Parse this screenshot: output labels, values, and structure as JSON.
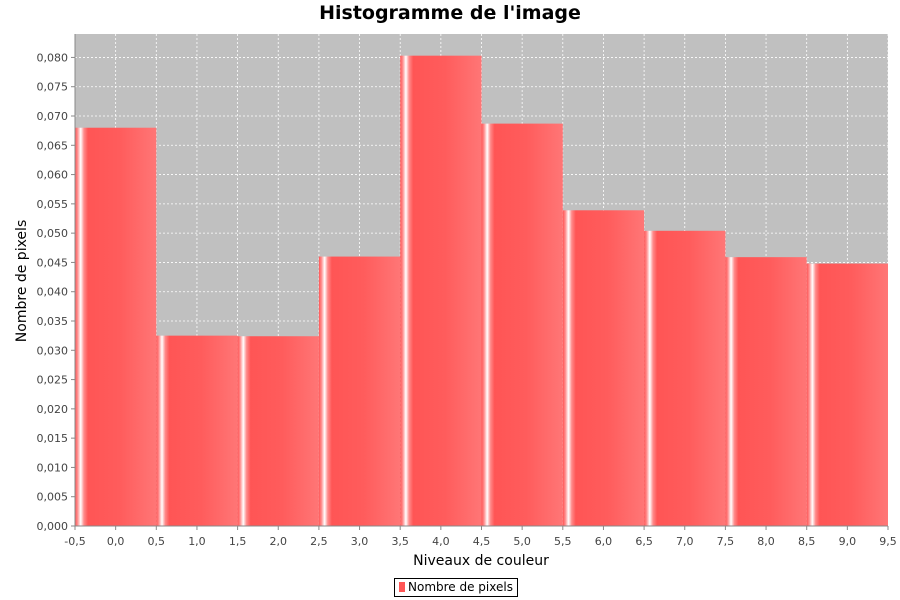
{
  "colors": {
    "plot_background": "#c0c0c0",
    "gridline": "#ffffff",
    "bar_base": "#ff5555",
    "bar_light": "#ff7f7f",
    "bar_highlight": "#ffffff"
  },
  "legend": {
    "label": "Nombre de pixels"
  },
  "chart_data": {
    "type": "bar",
    "title": "Histogramme de l'image",
    "xlabel": "Niveaux de couleur",
    "ylabel": "Nombre de pixels",
    "xlim": [
      -0.5,
      9.5
    ],
    "ylim": [
      0,
      0.084
    ],
    "grid": true,
    "legend_position": "bottom",
    "x_ticks": [
      "-0,5",
      "0,0",
      "0,5",
      "1,0",
      "1,5",
      "2,0",
      "2,5",
      "3,0",
      "3,5",
      "4,0",
      "4,5",
      "5,0",
      "5,5",
      "6,0",
      "6,5",
      "7,0",
      "7,5",
      "8,0",
      "8,5",
      "9,0",
      "9,5"
    ],
    "y_ticks": [
      "0,000",
      "0,005",
      "0,010",
      "0,015",
      "0,020",
      "0,025",
      "0,030",
      "0,035",
      "0,040",
      "0,045",
      "0,050",
      "0,055",
      "0,060",
      "0,065",
      "0,070",
      "0,075",
      "0,080"
    ],
    "categories": [
      0,
      1,
      2,
      3,
      4,
      5,
      6,
      7,
      8,
      9
    ],
    "series": [
      {
        "name": "Nombre de pixels",
        "values": [
          0.068,
          0.0325,
          0.0324,
          0.046,
          0.0803,
          0.0687,
          0.0539,
          0.0504,
          0.0459,
          0.0448
        ]
      }
    ]
  }
}
